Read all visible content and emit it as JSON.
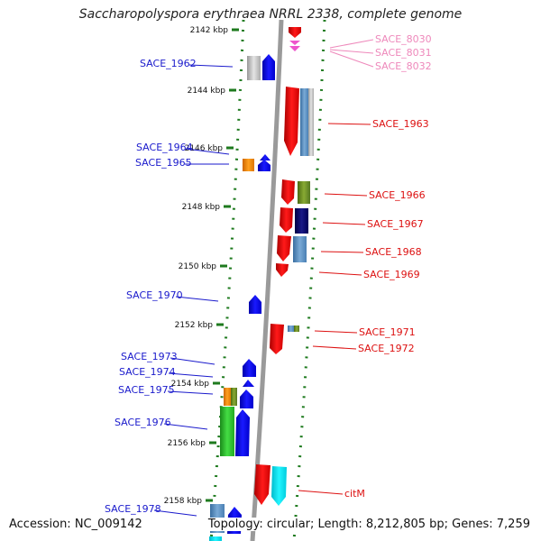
{
  "title": "Saccharopolyspora erythraea NRRL 2338, complete genome",
  "accession_text": "Accession: NC_009142",
  "topology_text": "Topology: circular; Length: 8,212,805 bp; Genes: 7,259",
  "colors": {
    "backbone": "#9a9a9a",
    "dotted_track": "#1e7a1e",
    "left_label": "#1a1acc",
    "right_label": "#dd1111",
    "pink_label": "#ee88bb"
  },
  "ticks": [
    {
      "label": "2142 kbp"
    },
    {
      "label": "2144 kbp"
    },
    {
      "label": "2146 kbp"
    },
    {
      "label": "2148 kbp"
    },
    {
      "label": "2150 kbp"
    },
    {
      "label": "2152 kbp"
    },
    {
      "label": "2154 kbp"
    },
    {
      "label": "2156 kbp"
    },
    {
      "label": "2158 kbp"
    }
  ],
  "left_labels": [
    {
      "text": "SACE_1962"
    },
    {
      "text": "SACE_1964"
    },
    {
      "text": "SACE_1965"
    },
    {
      "text": "SACE_1970"
    },
    {
      "text": "SACE_1973"
    },
    {
      "text": "SACE_1974"
    },
    {
      "text": "SACE_1975"
    },
    {
      "text": "SACE_1976"
    },
    {
      "text": "SACE_1978"
    }
  ],
  "right_labels": [
    {
      "text": "SACE_8030",
      "color": "#ee88bb"
    },
    {
      "text": "SACE_8031",
      "color": "#ee88bb"
    },
    {
      "text": "SACE_8032",
      "color": "#ee88bb"
    },
    {
      "text": "SACE_1963",
      "color": "#dd1111"
    },
    {
      "text": "SACE_1966",
      "color": "#dd1111"
    },
    {
      "text": "SACE_1967",
      "color": "#dd1111"
    },
    {
      "text": "SACE_1968",
      "color": "#dd1111"
    },
    {
      "text": "SACE_1969",
      "color": "#dd1111"
    },
    {
      "text": "SACE_1971",
      "color": "#dd1111"
    },
    {
      "text": "SACE_1972",
      "color": "#dd1111"
    },
    {
      "text": "citM",
      "color": "#dd1111"
    }
  ]
}
